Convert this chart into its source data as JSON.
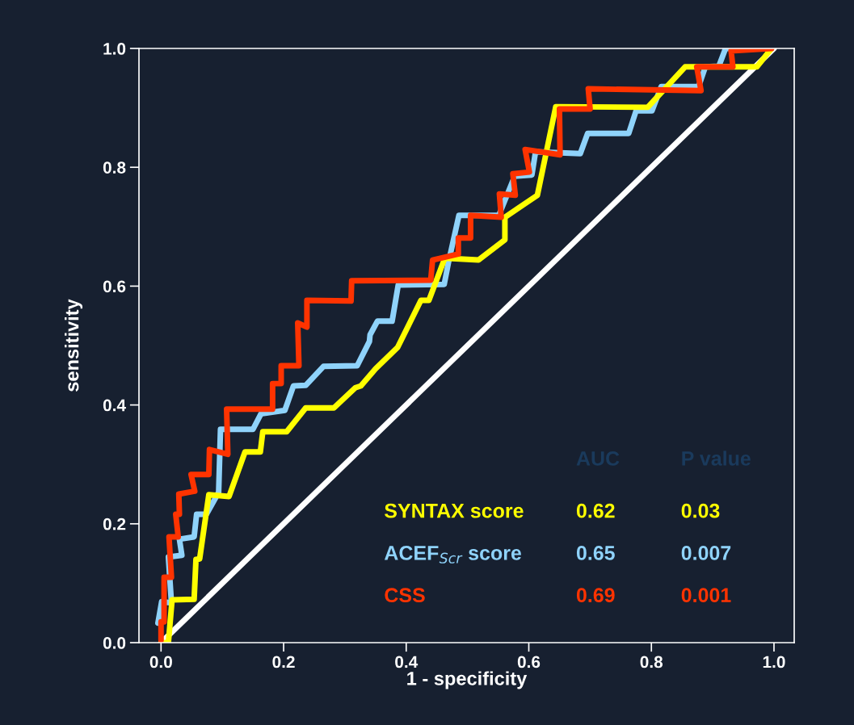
{
  "chart_data": {
    "type": "line",
    "xlabel": "1 - specificity",
    "ylabel": "sensitivity",
    "xlim": [
      -0.036,
      1.033
    ],
    "ylim": [
      0,
      1.0
    ],
    "xticks": [
      {
        "value": 0,
        "label": "0.0"
      },
      {
        "value": 0.2,
        "label": "0.2"
      },
      {
        "value": 0.4,
        "label": "0.4"
      },
      {
        "value": 0.6,
        "label": "0.6"
      },
      {
        "value": 0.8,
        "label": "0.8"
      },
      {
        "value": 1.0,
        "label": "1.0"
      }
    ],
    "yticks": [
      {
        "value": 0,
        "label": "0.0"
      },
      {
        "value": 0.2,
        "label": "0.2"
      },
      {
        "value": 0.4,
        "label": "0.4"
      },
      {
        "value": 0.6,
        "label": "0.6"
      },
      {
        "value": 0.8,
        "label": "0.8"
      },
      {
        "value": 1.0,
        "label": "1.0"
      }
    ],
    "grid": false,
    "legend": "bottom right",
    "marker": "none",
    "line_style": "solid",
    "series": [
      {
        "color": "#ffffff",
        "x": [
          0,
          1
        ],
        "values": [
          0,
          1
        ]
      },
      {
        "name": "ACEF$_{Scr}$ score",
        "color": "#8fd3fb",
        "x": [
          -0.005,
          0.001,
          0.017,
          0.012,
          0.034,
          0.03,
          0.054,
          0.058,
          0.074,
          0.094,
          0.097,
          0.15,
          0.163,
          0.202,
          0.216,
          0.236,
          0.265,
          0.32,
          0.34,
          0.341,
          0.353,
          0.377,
          0.387,
          0.462,
          0.469,
          0.486,
          0.551,
          0.577,
          0.605,
          0.611,
          0.684,
          0.696,
          0.763,
          0.775,
          0.801,
          0.816,
          0.877,
          0.888,
          0.91,
          0.921,
          0.996
        ],
        "values": [
          0.033,
          0.069,
          0.067,
          0.144,
          0.147,
          0.174,
          0.178,
          0.216,
          0.216,
          0.253,
          0.359,
          0.359,
          0.385,
          0.391,
          0.432,
          0.433,
          0.465,
          0.466,
          0.507,
          0.518,
          0.541,
          0.541,
          0.602,
          0.603,
          0.64,
          0.719,
          0.719,
          0.785,
          0.787,
          0.826,
          0.823,
          0.857,
          0.857,
          0.895,
          0.895,
          0.936,
          0.936,
          0.969,
          0.97,
          1.0,
          1.0
        ]
      },
      {
        "name": "SYNTAX score",
        "color": "#ffff00",
        "x": [
          0,
          0.012,
          0.018,
          0.054,
          0.057,
          0.063,
          0.078,
          0.111,
          0.137,
          0.162,
          0.166,
          0.205,
          0.236,
          0.282,
          0.317,
          0.326,
          0.35,
          0.386,
          0.424,
          0.437,
          0.463,
          0.518,
          0.561,
          0.561,
          0.614,
          0.644,
          0.794,
          0.855,
          0.972,
          0.996
        ],
        "values": [
          0,
          0,
          0.072,
          0.073,
          0.14,
          0.141,
          0.249,
          0.246,
          0.321,
          0.321,
          0.355,
          0.355,
          0.395,
          0.395,
          0.429,
          0.432,
          0.461,
          0.497,
          0.576,
          0.576,
          0.647,
          0.644,
          0.678,
          0.716,
          0.753,
          0.902,
          0.901,
          0.969,
          0.969,
          1.0
        ]
      },
      {
        "name": "CSS",
        "color": "#ff3300",
        "x": [
          0,
          0,
          0.005,
          0.005,
          0.017,
          0.013,
          0.028,
          0.024,
          0.03,
          0.029,
          0.055,
          0.049,
          0.078,
          0.079,
          0.109,
          0.107,
          0.182,
          0.182,
          0.196,
          0.196,
          0.225,
          0.223,
          0.238,
          0.238,
          0.31,
          0.311,
          0.44,
          0.443,
          0.485,
          0.485,
          0.505,
          0.505,
          0.555,
          0.552,
          0.578,
          0.574,
          0.601,
          0.594,
          0.651,
          0.65,
          0.7,
          0.697,
          0.881,
          0.874,
          0.933,
          0.93,
          0.996
        ],
        "values": [
          0.004,
          0.035,
          0.035,
          0.11,
          0.11,
          0.178,
          0.178,
          0.216,
          0.216,
          0.25,
          0.255,
          0.283,
          0.283,
          0.325,
          0.317,
          0.393,
          0.393,
          0.436,
          0.436,
          0.466,
          0.466,
          0.538,
          0.531,
          0.576,
          0.575,
          0.609,
          0.61,
          0.644,
          0.654,
          0.681,
          0.681,
          0.719,
          0.716,
          0.755,
          0.753,
          0.789,
          0.792,
          0.83,
          0.821,
          0.898,
          0.898,
          0.932,
          0.929,
          0.969,
          0.969,
          0.996,
          1.0
        ]
      }
    ],
    "annotations": [
      "AUC",
      "P value",
      "0.62",
      "0.03",
      "0.65",
      "0.007",
      "0.69",
      "0.001"
    ]
  }
}
